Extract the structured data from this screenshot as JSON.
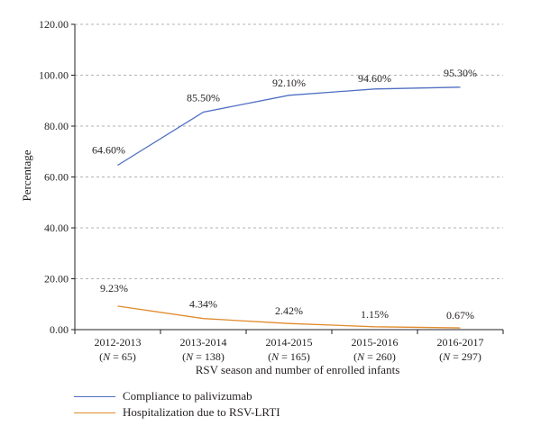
{
  "chart_data": {
    "type": "line",
    "xlabel": "RSV season and number of enrolled infants",
    "ylabel": "Percentage",
    "ylim": [
      0,
      120
    ],
    "yticks": [
      "0.00",
      "20.00",
      "40.00",
      "60.00",
      "80.00",
      "100.00",
      "120.00"
    ],
    "grid": "horizontal dashed",
    "legend_position": "bottom-left",
    "categories": [
      {
        "season": "2012-2013",
        "n_label": "(N = 65)"
      },
      {
        "season": "2013-2014",
        "n_label": "(N = 138)"
      },
      {
        "season": "2014-2015",
        "n_label": "(N = 165)"
      },
      {
        "season": "2015-2016",
        "n_label": "(N = 260)"
      },
      {
        "season": "2016-2017",
        "n_label": "(N = 297)"
      }
    ],
    "series": [
      {
        "name": "Compliance to palivizumab",
        "color": "#4f6fc2",
        "values": [
          64.6,
          85.5,
          92.1,
          94.6,
          95.3
        ],
        "labels": [
          "64.60%",
          "85.50%",
          "92.10%",
          "94.60%",
          "95.30%"
        ]
      },
      {
        "name": "Hospitalization due to RSV-LRTI",
        "color": "#e08a2c",
        "values": [
          9.23,
          4.34,
          2.42,
          1.15,
          0.67
        ],
        "labels": [
          "9.23%",
          "4.34%",
          "2.42%",
          "1.15%",
          "0.67%"
        ]
      }
    ]
  }
}
